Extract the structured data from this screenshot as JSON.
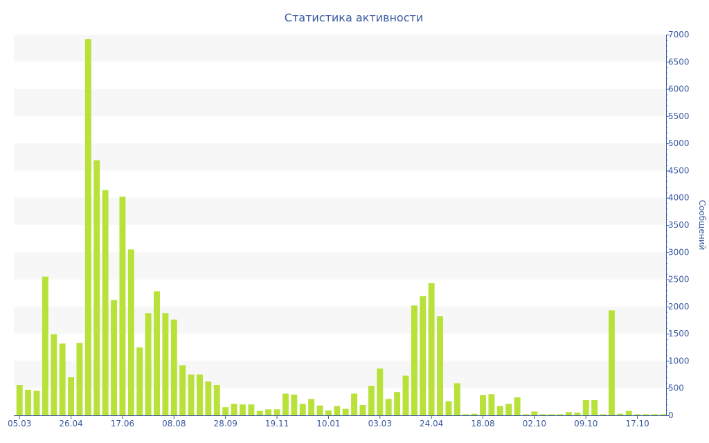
{
  "chart_data": {
    "type": "bar",
    "title": "Статистика активности",
    "ylabel": "Сообщений",
    "xlabel": "",
    "y_axis_side": "right",
    "ylim": [
      0,
      7000
    ],
    "y_ticks": [
      0,
      500,
      1000,
      1500,
      2000,
      2500,
      3000,
      3500,
      4000,
      4500,
      5000,
      5500,
      6000,
      6500,
      7000
    ],
    "grid": "alternating horizontal bands",
    "bar_color": "#b8e13a",
    "band_color": "#f7f7f7",
    "text_color": "#3a5aa0",
    "x_ticks": [
      {
        "label": "05.03",
        "index": 0
      },
      {
        "label": "26.04",
        "index": 6
      },
      {
        "label": "17.06",
        "index": 12
      },
      {
        "label": "08.08",
        "index": 18
      },
      {
        "label": "28.09",
        "index": 24
      },
      {
        "label": "19.11",
        "index": 30
      },
      {
        "label": "10.01",
        "index": 36
      },
      {
        "label": "03.03",
        "index": 42
      },
      {
        "label": "24.04",
        "index": 48
      },
      {
        "label": "18.08",
        "index": 54
      },
      {
        "label": "02.10",
        "index": 60
      },
      {
        "label": "09.10",
        "index": 66
      },
      {
        "label": "17.10",
        "index": 72
      }
    ],
    "values": [
      560,
      470,
      450,
      2550,
      1490,
      1320,
      700,
      1330,
      6920,
      4690,
      4140,
      2120,
      4020,
      3050,
      1250,
      1880,
      2280,
      1880,
      1760,
      920,
      750,
      750,
      620,
      560,
      150,
      210,
      200,
      200,
      80,
      110,
      110,
      400,
      380,
      210,
      300,
      180,
      90,
      170,
      120,
      400,
      190,
      540,
      860,
      300,
      430,
      730,
      2020,
      2190,
      2430,
      1820,
      260,
      590,
      20,
      30,
      370,
      390,
      170,
      210,
      330,
      20,
      70,
      20,
      20,
      20,
      60,
      50,
      280,
      280,
      20,
      1930,
      30,
      80,
      20,
      20,
      20,
      20
    ]
  }
}
